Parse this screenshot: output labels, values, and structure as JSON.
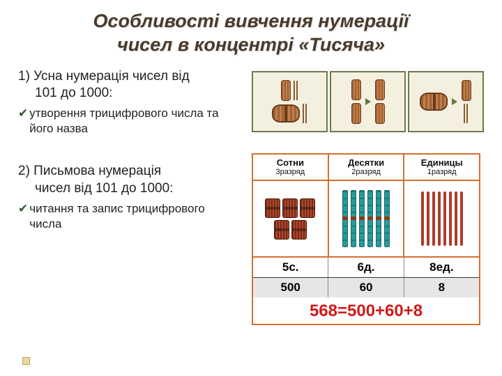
{
  "title_line1": "Особливості вивчення нумерації",
  "title_line2": "чисел в концентрі «Тисяча»",
  "section1": {
    "head": "1) Усна нумерація чисел від",
    "head_indent": "101 до 1000:",
    "bullet": "утворення трицифрового числа та його назва"
  },
  "section2": {
    "head": "2) Письмова нумерація",
    "head_indent": "чисел від 101 до 1000:",
    "bullet": "читання та запис трицифрового числа"
  },
  "pv": {
    "cols": [
      {
        "top": "Сотни",
        "sub": "3разряд",
        "label": "5с.",
        "value": "500"
      },
      {
        "top": "Десятки",
        "sub": "2разряд",
        "label": "6д.",
        "value": "60"
      },
      {
        "top": "Единицы",
        "sub": "1разряд",
        "label": "8ед.",
        "value": "8"
      }
    ],
    "equation": "568=500+60+8",
    "hundreds_count": 5,
    "tens_count": 6,
    "units_count": 8,
    "colors": {
      "border": "#d07030",
      "equation": "#d01a1a",
      "grey_row": "#e6e6e6",
      "hundred_fill": "#b04a2a",
      "ten_fill": "#2a9a9a",
      "unit_fill": "#b03a2a"
    }
  }
}
